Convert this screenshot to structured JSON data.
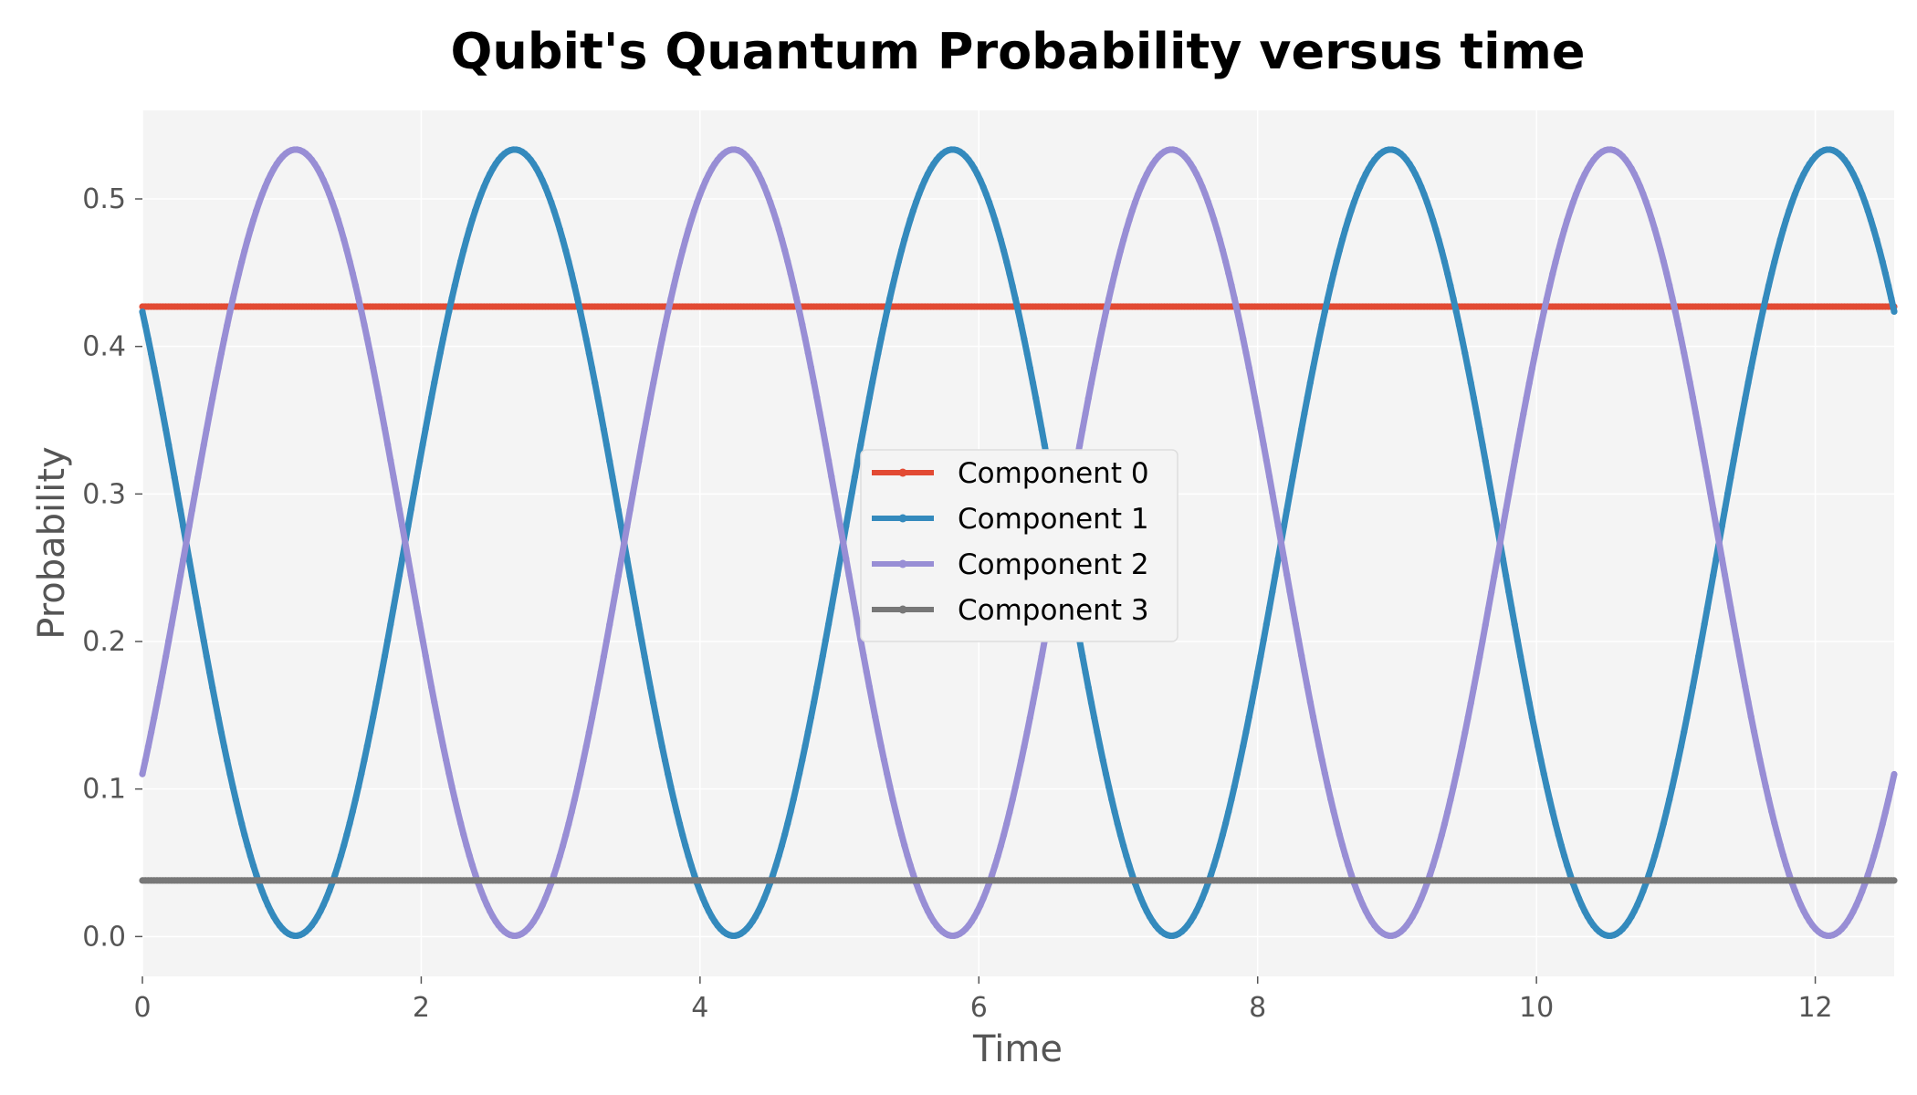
{
  "chart_data": {
    "type": "line",
    "title": "Qubit's Quantum Probability versus time",
    "xlabel": "Time",
    "ylabel": "Probability",
    "xlim": [
      0,
      12.566
    ],
    "ylim": [
      -0.027,
      0.56
    ],
    "xticks": [
      0,
      2,
      4,
      6,
      8,
      10,
      12
    ],
    "xtick_labels": [
      "0",
      "2",
      "4",
      "6",
      "8",
      "10",
      "12"
    ],
    "yticks": [
      0.0,
      0.1,
      0.2,
      0.3,
      0.4,
      0.5
    ],
    "ytick_labels": [
      "0.0",
      "0.1",
      "0.2",
      "0.3",
      "0.4",
      "0.5"
    ],
    "grid": true,
    "legend_position": "center",
    "background": "#f4f4f4",
    "series": [
      {
        "name": "Component 0",
        "color": "#E24A33",
        "form": "constant",
        "value": 0.427
      },
      {
        "name": "Component 1",
        "color": "#348ABD",
        "form": "oscillating",
        "offset": 0.267,
        "amplitude": 0.2665,
        "period": 3.1416,
        "phase_x": 2.67
      },
      {
        "name": "Component 2",
        "color": "#988ED5",
        "form": "oscillating",
        "offset": 0.267,
        "amplitude": 0.2665,
        "period": 3.1416,
        "phase_x": 1.1
      },
      {
        "name": "Component 3",
        "color": "#777777",
        "form": "constant",
        "value": 0.038
      }
    ]
  }
}
